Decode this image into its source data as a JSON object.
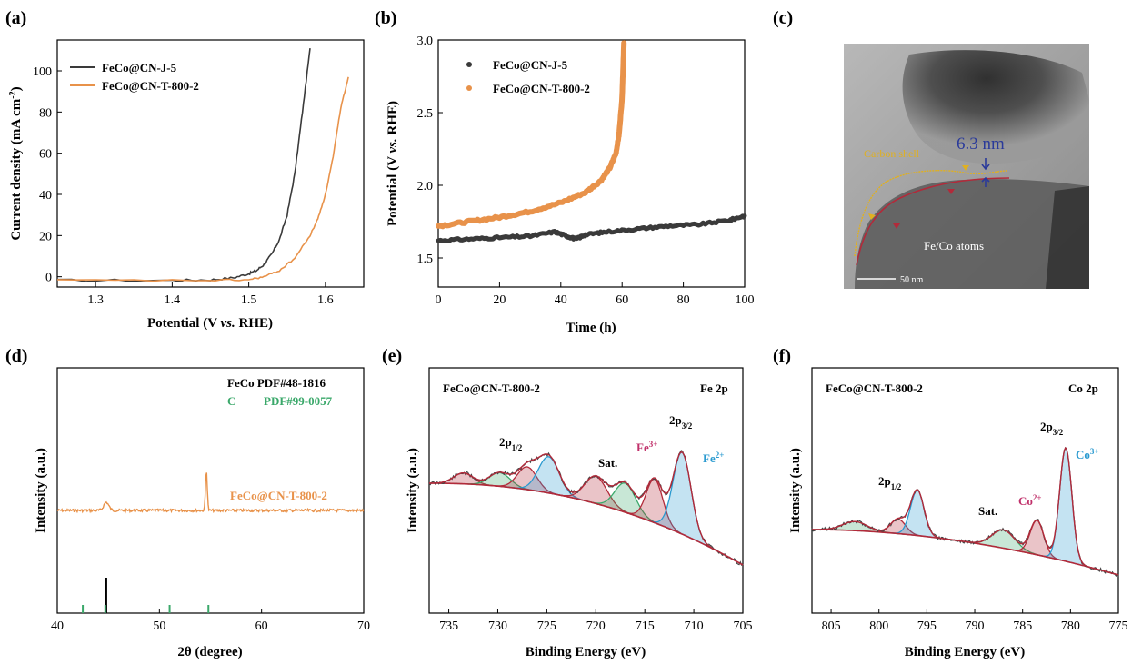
{
  "colors": {
    "black": "#3a3a3a",
    "orange": "#e8924a",
    "green": "#3aa86a",
    "red": "#b22a3a",
    "blue": "#2a9ad0",
    "pink": "#c0306a",
    "gold": "#e0b020",
    "navy": "#2a3a9a"
  },
  "chart_data": [
    {
      "panel": "(a)",
      "type": "line",
      "xlabel": "Potential (V vs. RHE)",
      "ylabel": "Current density (mA cm-2)",
      "xlim": [
        1.25,
        1.65
      ],
      "ylim": [
        -5,
        115
      ],
      "xticks": [
        "1.3",
        "1.4",
        "1.5",
        "1.6"
      ],
      "yticks": [
        "0",
        "20",
        "40",
        "60",
        "80",
        "100"
      ],
      "series": [
        {
          "name": "FeCo@CN-J-5",
          "color": "#3a3a3a",
          "points": [
            [
              1.25,
              -1.8
            ],
            [
              1.4,
              -1.8
            ],
            [
              1.45,
              -1.5
            ],
            [
              1.48,
              -0.5
            ],
            [
              1.5,
              1.5
            ],
            [
              1.51,
              3
            ],
            [
              1.52,
              6
            ],
            [
              1.53,
              11
            ],
            [
              1.54,
              18
            ],
            [
              1.55,
              30
            ],
            [
              1.56,
              50
            ],
            [
              1.57,
              80
            ],
            [
              1.58,
              111
            ]
          ]
        },
        {
          "name": "FeCo@CN-T-800-2",
          "color": "#e8924a",
          "points": [
            [
              1.25,
              -1.8
            ],
            [
              1.45,
              -1.8
            ],
            [
              1.5,
              -1.5
            ],
            [
              1.52,
              0
            ],
            [
              1.54,
              3
            ],
            [
              1.56,
              9
            ],
            [
              1.58,
              20
            ],
            [
              1.59,
              28
            ],
            [
              1.6,
              40
            ],
            [
              1.61,
              58
            ],
            [
              1.62,
              82
            ],
            [
              1.63,
              97
            ]
          ]
        }
      ]
    },
    {
      "panel": "(b)",
      "type": "scatter",
      "xlabel": "Time (h)",
      "ylabel": "Potential (V vs. RHE)",
      "xlim": [
        0,
        100
      ],
      "ylim": [
        1.3,
        3.0
      ],
      "xticks": [
        "0",
        "20",
        "40",
        "60",
        "80",
        "100"
      ],
      "yticks": [
        "1.5",
        "2.0",
        "2.5",
        "3.0"
      ],
      "series": [
        {
          "name": "FeCo@CN-J-5",
          "color": "#3a3a3a",
          "points": [
            [
              0,
              1.62
            ],
            [
              10,
              1.63
            ],
            [
              20,
              1.64
            ],
            [
              30,
              1.65
            ],
            [
              38,
              1.68
            ],
            [
              42,
              1.65
            ],
            [
              45,
              1.63
            ],
            [
              48,
              1.66
            ],
            [
              55,
              1.68
            ],
            [
              65,
              1.7
            ],
            [
              75,
              1.72
            ],
            [
              85,
              1.73
            ],
            [
              95,
              1.76
            ],
            [
              100,
              1.79
            ]
          ]
        },
        {
          "name": "FeCo@CN-T-800-2",
          "color": "#e8924a",
          "points": [
            [
              0,
              1.72
            ],
            [
              10,
              1.75
            ],
            [
              20,
              1.78
            ],
            [
              30,
              1.82
            ],
            [
              40,
              1.88
            ],
            [
              48,
              1.95
            ],
            [
              53,
              2.03
            ],
            [
              56,
              2.12
            ],
            [
              58,
              2.22
            ],
            [
              59,
              2.35
            ],
            [
              60,
              2.6
            ],
            [
              60.6,
              2.98
            ]
          ]
        }
      ]
    },
    {
      "panel": "(d)",
      "type": "line",
      "xlabel": "2θ (degree)",
      "ylabel": "Intensity (a.u.)",
      "xlim": [
        40,
        70
      ],
      "xticks": [
        "40",
        "50",
        "60",
        "70"
      ],
      "legend": [
        "FeCo PDF#48-1816",
        "C",
        "PDF#99-0057"
      ],
      "series": [
        {
          "name": "FeCo@CN-T-800-2",
          "color": "#e8924a",
          "peaks": [
            44.8,
            54.6
          ]
        }
      ],
      "reference_lines": {
        "FeCo": [
          44.8
        ],
        "C": [
          42.5,
          44.7,
          51.0,
          54.8
        ]
      }
    },
    {
      "panel": "(e)",
      "type": "line",
      "xlabel": "Binding Energy (eV)",
      "ylabel": "Intensity (a.u.)",
      "xlim": [
        737,
        705
      ],
      "xticks": [
        "735",
        "730",
        "725",
        "720",
        "715",
        "710",
        "705"
      ],
      "sample": "FeCo@CN-T-800-2",
      "region": "Fe 2p",
      "peaks": [
        {
          "center": 733.5,
          "color": "#b22a3a"
        },
        {
          "center": 729.8,
          "color": "#3aa86a"
        },
        {
          "center": 727.0,
          "color": "#b22a3a"
        },
        {
          "center": 724.8,
          "color": "#2a9ad0"
        },
        {
          "center": 720.0,
          "color": "#b22a3a"
        },
        {
          "center": 717.0,
          "color": "#3aa86a"
        },
        {
          "center": 714.0,
          "color": "#b22a3a"
        },
        {
          "center": 711.2,
          "color": "#2a9ad0"
        }
      ],
      "labels": [
        "2p1/2",
        "Sat.",
        "Fe3+",
        "2p3/2",
        "Fe2+"
      ]
    },
    {
      "panel": "(f)",
      "type": "line",
      "xlabel": "Binding Energy (eV)",
      "ylabel": "Intensity (a.u.)",
      "xlim": [
        807,
        775
      ],
      "xticks": [
        "805",
        "800",
        "795",
        "790",
        "785",
        "780",
        "775"
      ],
      "sample": "FeCo@CN-T-800-2",
      "region": "Co 2p",
      "peaks": [
        {
          "center": 802.5,
          "color": "#3aa86a"
        },
        {
          "center": 798.0,
          "color": "#b22a3a"
        },
        {
          "center": 796.0,
          "color": "#2a9ad0"
        },
        {
          "center": 787.0,
          "color": "#3aa86a"
        },
        {
          "center": 783.5,
          "color": "#b22a3a"
        },
        {
          "center": 780.5,
          "color": "#2a9ad0"
        }
      ],
      "labels": [
        "2p1/2",
        "Sat.",
        "Co2+",
        "2p3/2",
        "Co3+"
      ]
    }
  ],
  "panel_labels": [
    "(a)",
    "(b)",
    "(c)",
    "(d)",
    "(e)",
    "(f)"
  ],
  "tem": {
    "thickness": "6.3 nm",
    "shell": "Carbon shell",
    "core": "Fe/Co atoms",
    "scale": "50 nm"
  },
  "text": {
    "a_xlabel_pre": "Potential (V ",
    "a_xlabel_vs": "vs.",
    "a_xlabel_post": " RHE)",
    "a_ylabel": "Current density (mA cm",
    "a_ylabel_sup": "-2",
    "a_ylabel_end": ")",
    "b_xlabel": "Time (h)",
    "b_ylabel_pre": "Potential (V ",
    "b_ylabel_vs": "vs.",
    "b_ylabel_post": " RHE)",
    "d_xlabel": "2θ (degree)",
    "intensity": "Intensity (a.u.)",
    "be": "Binding Energy (eV)",
    "d_leg1": "FeCo PDF#48-1816",
    "d_leg2": "C",
    "d_leg3": "PDF#99-0057",
    "d_series": "FeCo@CN-T-800-2",
    "e_sample": "FeCo@CN-T-800-2",
    "e_region": "Fe 2p",
    "f_sample": "FeCo@CN-T-800-2",
    "f_region": "Co 2p",
    "p12": "2p",
    "p12sub": "1/2",
    "p32": "2p",
    "p32sub": "3/2",
    "sat": "Sat.",
    "fe3": "Fe",
    "fe3sup": "3+",
    "fe2": "Fe",
    "fe2sup": "2+",
    "co2": "Co",
    "co2sup": "2+",
    "co3": "Co",
    "co3sup": "3+",
    "a_leg1": "FeCo@CN-J-5",
    "a_leg2": "FeCo@CN-T-800-2",
    "b_leg1": "FeCo@CN-J-5",
    "b_leg2": "FeCo@CN-T-800-2"
  }
}
